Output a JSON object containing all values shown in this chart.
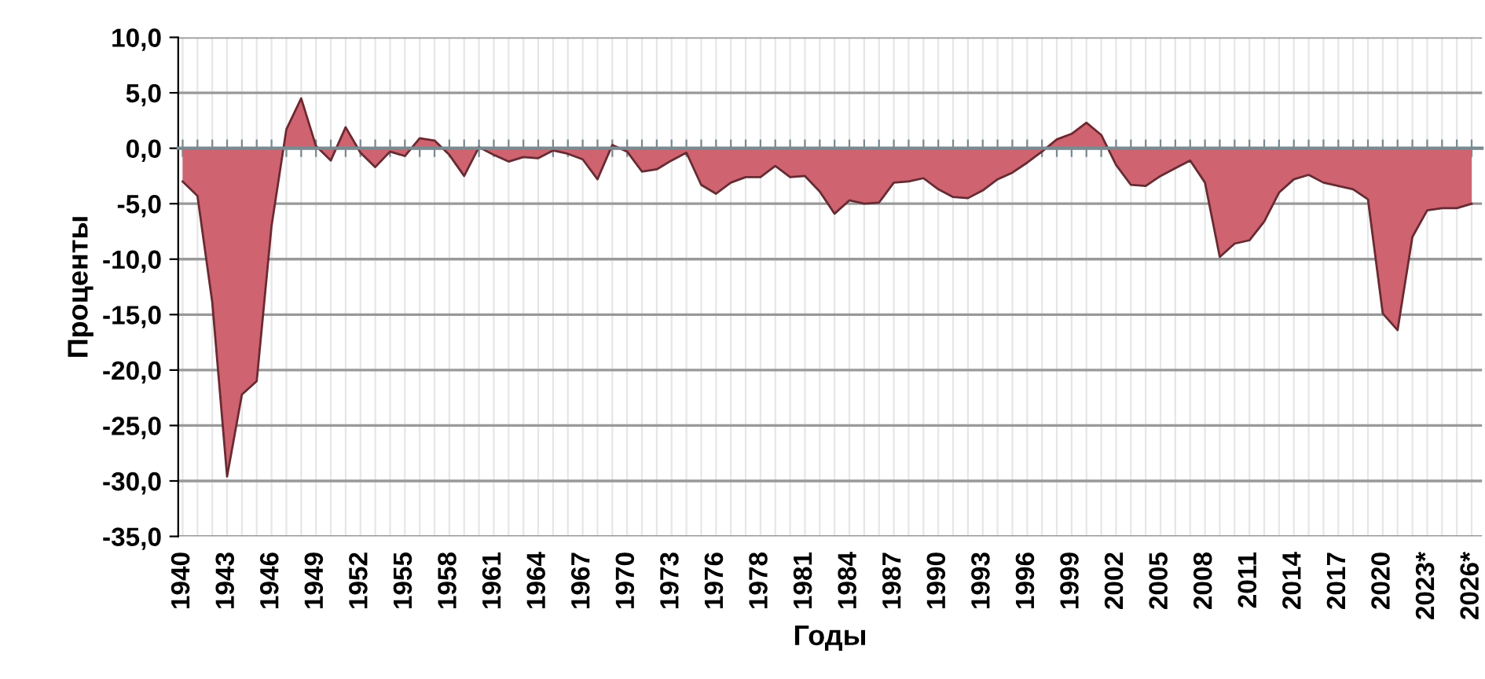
{
  "chart_data": {
    "type": "area",
    "xlabel": "Годы",
    "ylabel": "Проценты",
    "categories": [
      "1940",
      null,
      null,
      "1943",
      null,
      null,
      "1946",
      null,
      null,
      "1949",
      null,
      null,
      "1952",
      null,
      null,
      "1955",
      null,
      null,
      "1958",
      null,
      null,
      "1961",
      null,
      null,
      "1964",
      null,
      null,
      "1967",
      null,
      null,
      "1970",
      null,
      null,
      "1973",
      null,
      null,
      "1976",
      null,
      null,
      "1978",
      null,
      null,
      "1981",
      null,
      null,
      "1984",
      null,
      null,
      "1987",
      null,
      null,
      "1990",
      null,
      null,
      "1993",
      null,
      null,
      "1996",
      null,
      null,
      "1999",
      null,
      null,
      "2002",
      null,
      null,
      "2005",
      null,
      null,
      "2008",
      null,
      null,
      "2011",
      null,
      null,
      "2014",
      null,
      null,
      "2017",
      null,
      null,
      "2020",
      null,
      null,
      "2023*",
      null,
      null,
      "2026*"
    ],
    "series": [
      {
        "color": "#cf6370",
        "values": [
          -3.0,
          -4.3,
          -13.9,
          -29.6,
          -22.2,
          -21.0,
          -7.0,
          1.7,
          4.5,
          0.2,
          -1.1,
          1.9,
          -0.4,
          -1.7,
          -0.3,
          -0.7,
          0.9,
          0.7,
          -0.6,
          -2.5,
          0.1,
          -0.6,
          -1.2,
          -0.8,
          -0.9,
          -0.2,
          -0.5,
          -1.0,
          -2.8,
          0.3,
          -0.3,
          -2.1,
          -1.9,
          -1.1,
          -0.4,
          -3.3,
          -4.1,
          -3.1,
          -2.6,
          -2.6,
          -1.6,
          -2.6,
          -2.5,
          -3.9,
          -5.9,
          -4.7,
          -5.0,
          -4.9,
          -3.1,
          -3.0,
          -2.7,
          -3.7,
          -4.4,
          -4.5,
          -3.8,
          -2.8,
          -2.2,
          -1.3,
          -0.3,
          0.8,
          1.3,
          2.3,
          1.2,
          -1.5,
          -3.3,
          -3.4,
          -2.5,
          -1.8,
          -1.1,
          -3.1,
          -9.8,
          -8.6,
          -8.3,
          -6.6,
          -4.0,
          -2.8,
          -2.4,
          -3.1,
          -3.4,
          -3.7,
          -4.6,
          -14.9,
          -16.4,
          -8.0,
          -5.6,
          -5.4,
          -5.4,
          -5.0
        ]
      }
    ],
    "ylim": [
      -35,
      10
    ],
    "yticks": [
      {
        "value": -35,
        "label": "-35,0"
      },
      {
        "value": -30,
        "label": "-30,0"
      },
      {
        "value": -25,
        "label": "-25,0"
      },
      {
        "value": -20,
        "label": "-20,0"
      },
      {
        "value": -15,
        "label": "-15,0"
      },
      {
        "value": -10,
        "label": "-10,0"
      },
      {
        "value": -5,
        "label": "-5,0"
      },
      {
        "value": 0,
        "label": "0,0"
      },
      {
        "value": 5,
        "label": "5,0"
      },
      {
        "value": 10,
        "label": "10,0"
      }
    ],
    "grid": true,
    "legend": false
  }
}
